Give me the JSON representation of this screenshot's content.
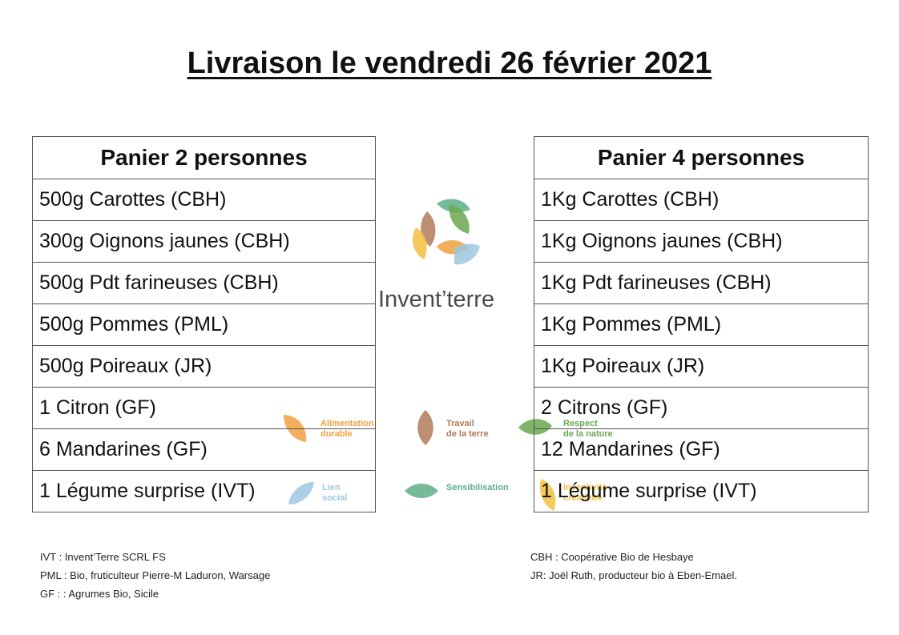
{
  "title": "Livraison le vendredi 26 février 2021",
  "basket2": {
    "header": "Panier 2 personnes",
    "items": [
      "500g Carottes (CBH)",
      "300g Oignons jaunes (CBH)",
      "500g Pdt farineuses (CBH)",
      "500g Pommes (PML)",
      "500g Poireaux (JR)",
      "1 Citron (GF)",
      "6 Mandarines (GF)",
      "1 Légume surprise (IVT)"
    ]
  },
  "basket4": {
    "header": "Panier 4 personnes",
    "items": [
      "1Kg Carottes (CBH)",
      "1Kg Oignons jaunes (CBH)",
      "1Kg Pdt farineuses (CBH)",
      "1Kg Pommes (PML)",
      "1Kg Poireaux (JR)",
      "2 Citrons (GF)",
      "12 Mandarines (GF)",
      "1 Légume surprise (IVT)"
    ]
  },
  "logo": {
    "name": "Invent’terre"
  },
  "values": {
    "alimentation": {
      "line1": "Alimentation",
      "line2": "durable",
      "color": "#f0a040"
    },
    "travail": {
      "line1": "Travail",
      "line2": "de la terre",
      "color": "#b07a5a"
    },
    "respect": {
      "line1": "Respect",
      "line2": "de la nature",
      "color": "#6aa84f"
    },
    "lien": {
      "line1": "Lien",
      "line2": "social",
      "color": "#9cc7e0"
    },
    "sensibilisation": {
      "line1": "Sensibilisation",
      "color": "#5cae8a"
    },
    "inventivite": {
      "line1": "Inventivité",
      "line2": "créativité",
      "color": "#f5c040"
    }
  },
  "legend_left": [
    "IVT : Invent’Terre SCRL FS",
    "PML : Bio, fruticulteur Pierre-M Laduron, Warsage",
    "GF : : Agrumes Bio, Sicile"
  ],
  "legend_right": [
    "CBH : Coopérative Bio de Hesbaye",
    "JR: Joël Ruth, producteur bio à Eben-Emael."
  ]
}
